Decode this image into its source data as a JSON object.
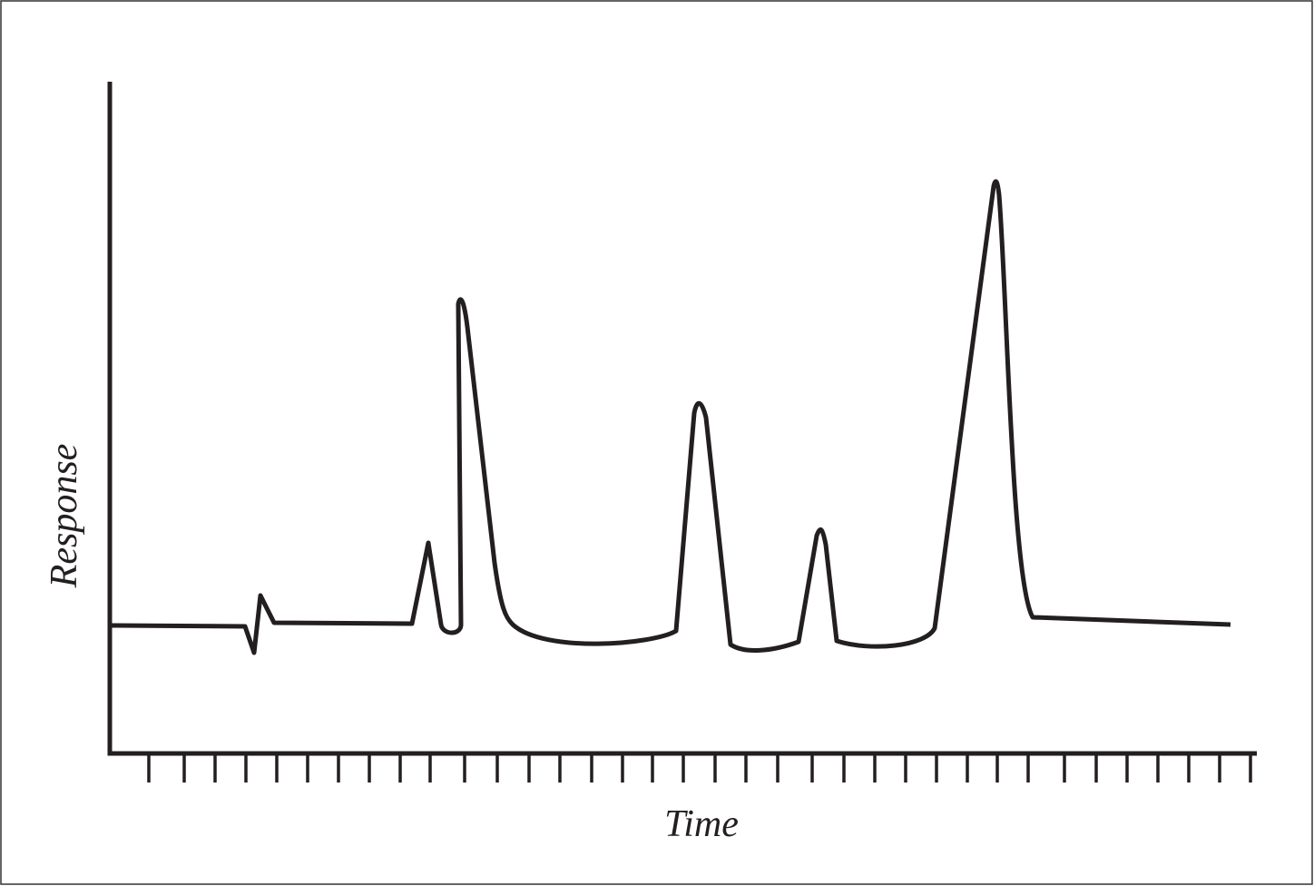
{
  "axes": {
    "y_label": "Response",
    "x_label": "Time"
  }
}
